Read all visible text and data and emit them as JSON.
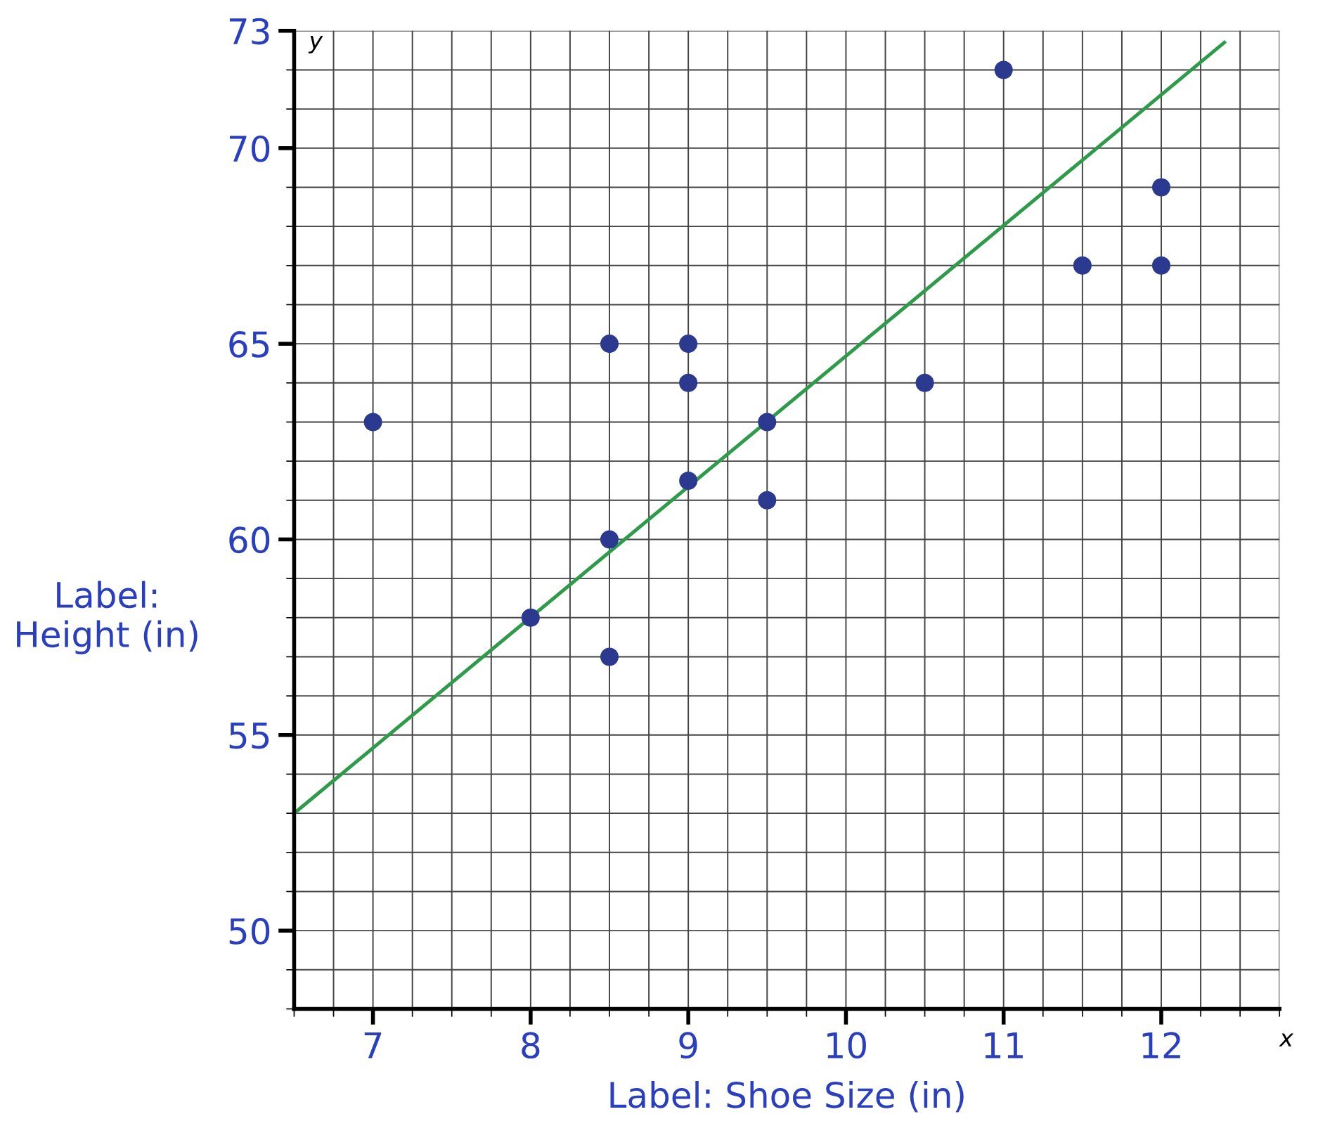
{
  "chart_data": {
    "type": "scatter",
    "xlabel": "Label: Shoe Size (in)",
    "ylabel": "Label:\nHeight (in)",
    "annotations": [
      "x",
      "y"
    ],
    "series": [
      {
        "color": "#2b3a8f",
        "marker": "circle",
        "x": [
          7,
          8,
          8.5,
          8.5,
          8.5,
          9,
          9,
          9,
          9.5,
          9.5,
          10.5,
          11,
          11.5,
          12,
          12
        ],
        "values": [
          63,
          58,
          65,
          60,
          57,
          65,
          64,
          61.5,
          63,
          61,
          64,
          72,
          67,
          69,
          67
        ]
      },
      {
        "type": "line",
        "marker": "none",
        "color": "#2e9b4a",
        "x": [
          6.5,
          12.4
        ],
        "values": [
          53,
          72.7
        ]
      }
    ],
    "xlim": [
      6.5,
      12.75
    ],
    "ylim": [
      48,
      73
    ],
    "xticks": [
      7,
      8,
      9,
      10,
      11,
      12
    ],
    "yticks": [
      50,
      55,
      60,
      65,
      70,
      73
    ],
    "grid": true,
    "line_style": "solid"
  }
}
